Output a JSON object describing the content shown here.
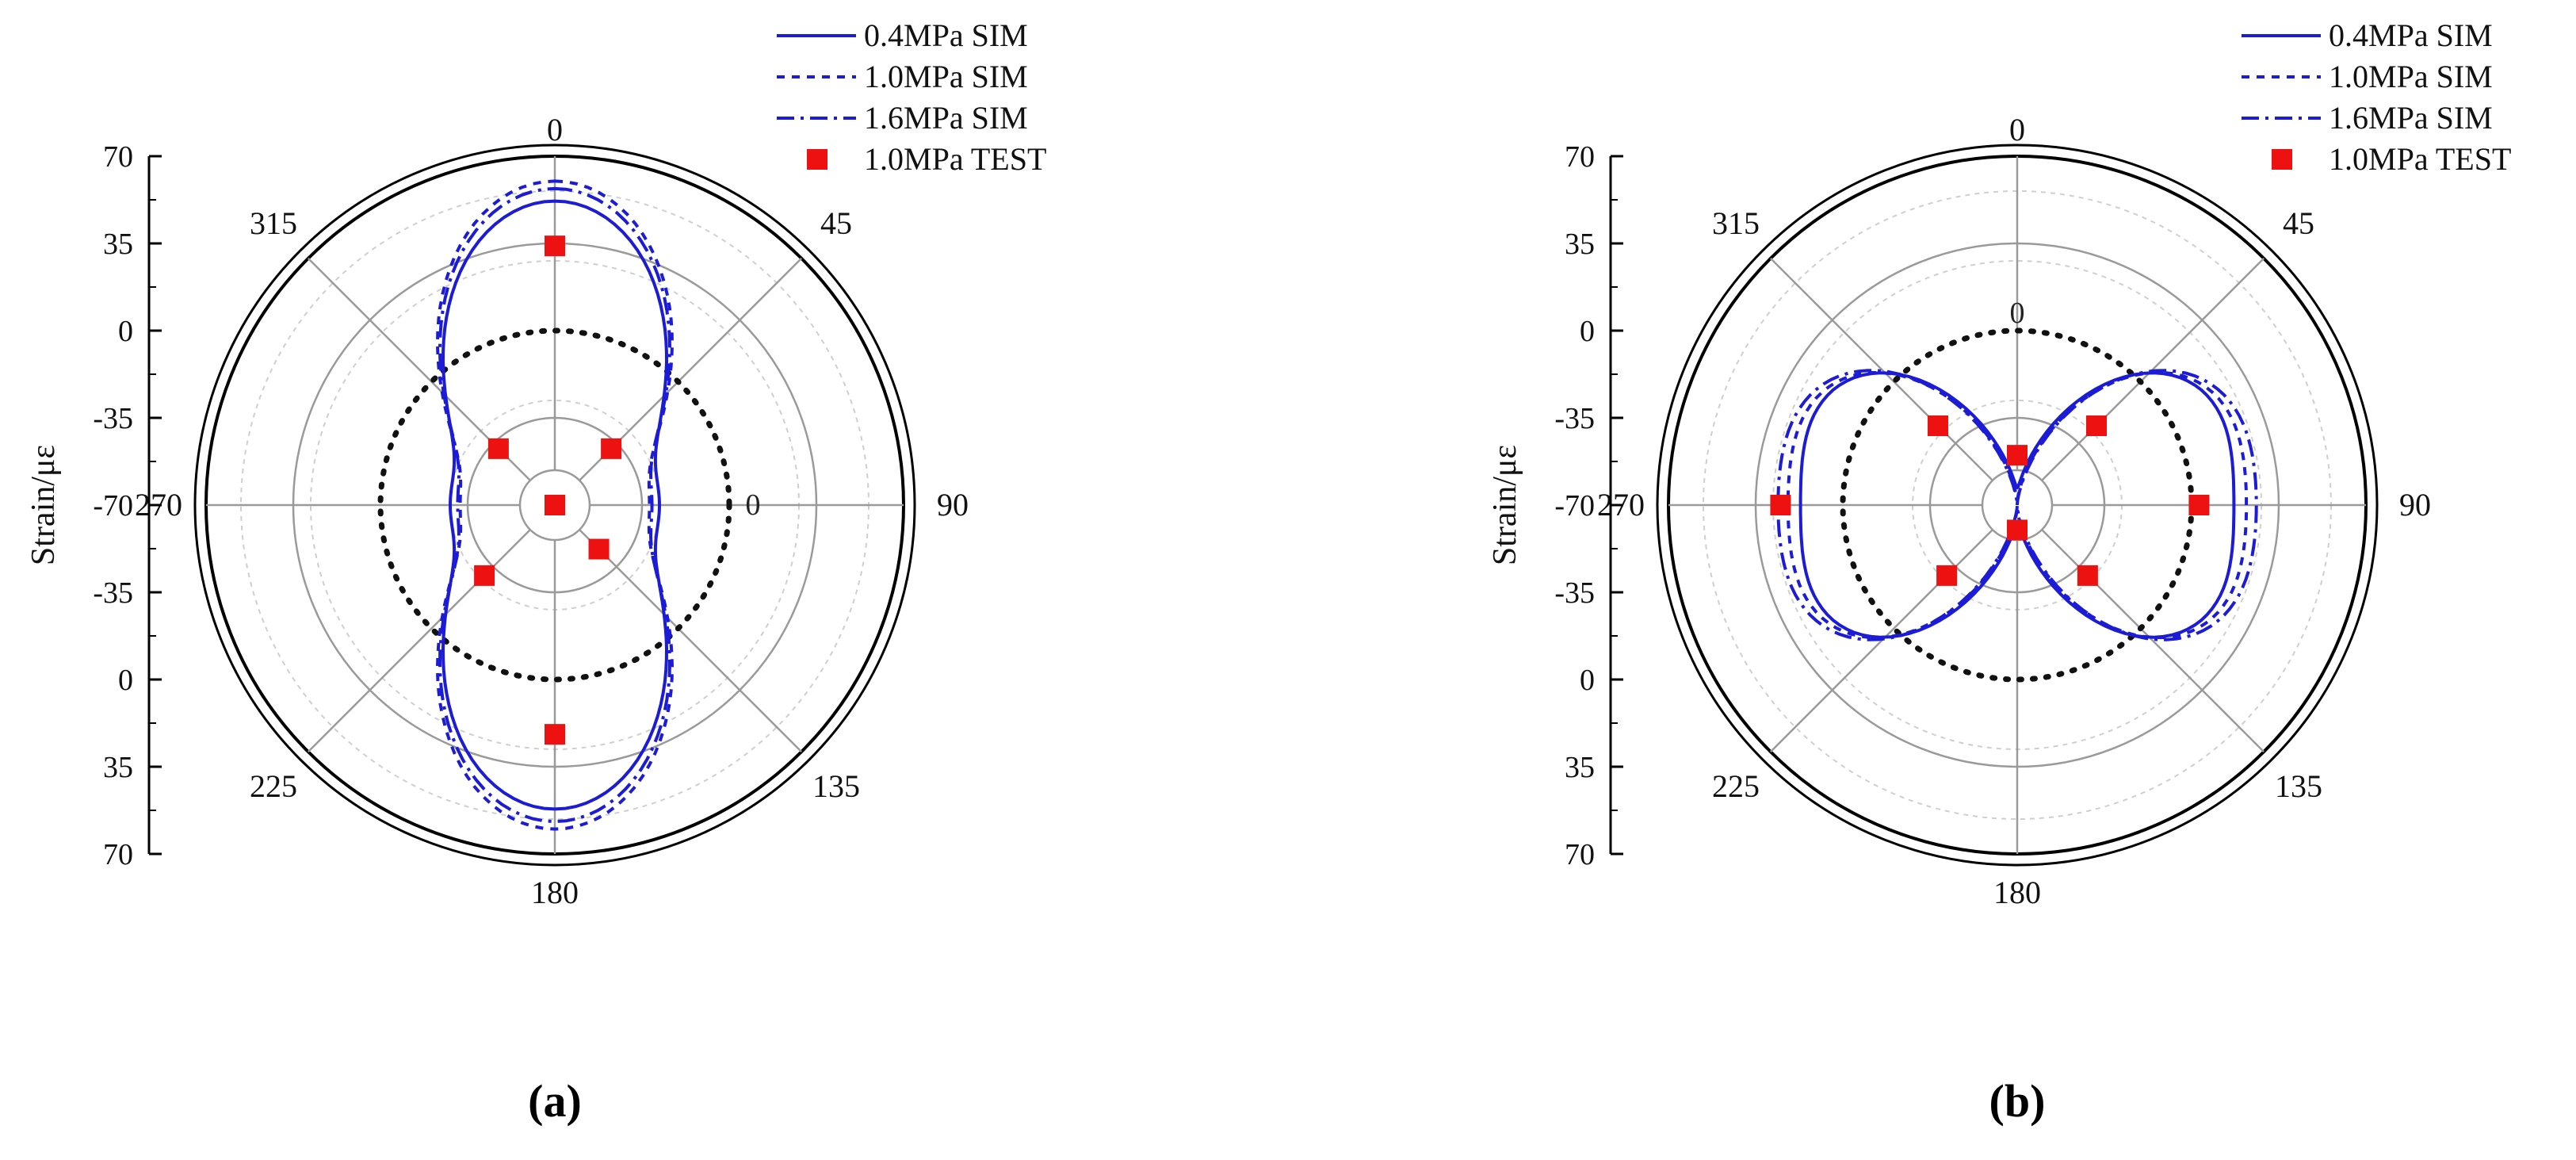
{
  "colors": {
    "sim": "#1c1cd6",
    "test": "#ee1111",
    "reference": "#111111",
    "grid": "#9a9a9a",
    "axis": "#000000"
  },
  "chart_data": [
    {
      "type": "polar",
      "panel_label": "(a)",
      "angle_ticks": [
        "0",
        "45",
        "90",
        "135",
        "180",
        "225",
        "270",
        "315"
      ],
      "radial_axis": {
        "label": "Strain/με",
        "ticks_top": [
          "70",
          "35",
          "0",
          "-35",
          "-70"
        ],
        "ticks_bottom": [
          "-35",
          "0",
          "35",
          "70"
        ],
        "range": [
          -70,
          70
        ],
        "inner_zero_label": "0"
      },
      "legend": [
        "0.4MPa SIM",
        "1.0MPa SIM",
        "1.6MPa SIM",
        "1.0MPa TEST"
      ],
      "legend_placement": "top-right",
      "series": [
        {
          "name": "0.4MPa SIM",
          "style": "solid",
          "a0": 2,
          "a2": 40
        },
        {
          "name": "1.0MPa SIM",
          "style": "dashed",
          "a0": 4,
          "a2": 46
        },
        {
          "name": "1.6MPa SIM",
          "style": "dashdot",
          "a0": 3,
          "a2": 44
        }
      ],
      "test": {
        "name": "1.0MPa TEST",
        "angles": [
          0,
          45,
          90,
          135,
          180,
          225,
          270,
          315
        ],
        "values": [
          34,
          -38,
          -70,
          -45,
          22,
          -30,
          -70,
          -38
        ]
      }
    },
    {
      "type": "polar",
      "panel_label": "(b)",
      "angle_ticks": [
        "0",
        "45",
        "90",
        "135",
        "180",
        "225",
        "270",
        "315"
      ],
      "radial_axis": {
        "label": "Strain/με",
        "ticks_top": [
          "70",
          "35",
          "0",
          "-35",
          "-70"
        ],
        "ticks_bottom": [
          "-35",
          "0",
          "35",
          "70"
        ],
        "range": [
          -70,
          70
        ],
        "inner_zero_label": "0"
      },
      "legend": [
        "0.4MPa SIM",
        "1.0MPa SIM",
        "1.6MPa SIM",
        "1.0MPa TEST"
      ],
      "legend_placement": "top-right",
      "series": [
        {
          "name": "0.4MPa SIM",
          "style": "solid",
          "a0": -9,
          "a2": -40
        },
        {
          "name": "1.0MPa SIM",
          "style": "dashed",
          "a0": -9,
          "a2": -45
        },
        {
          "name": "1.6MPa SIM",
          "style": "dashdot",
          "a0": -8,
          "a2": -48
        }
      ],
      "test": {
        "name": "1.0MPa TEST",
        "angles": [
          0,
          45,
          90,
          135,
          180,
          225,
          270,
          315
        ],
        "values": [
          -50,
          -25,
          3,
          -30,
          -60,
          -30,
          25,
          -25
        ]
      }
    }
  ]
}
